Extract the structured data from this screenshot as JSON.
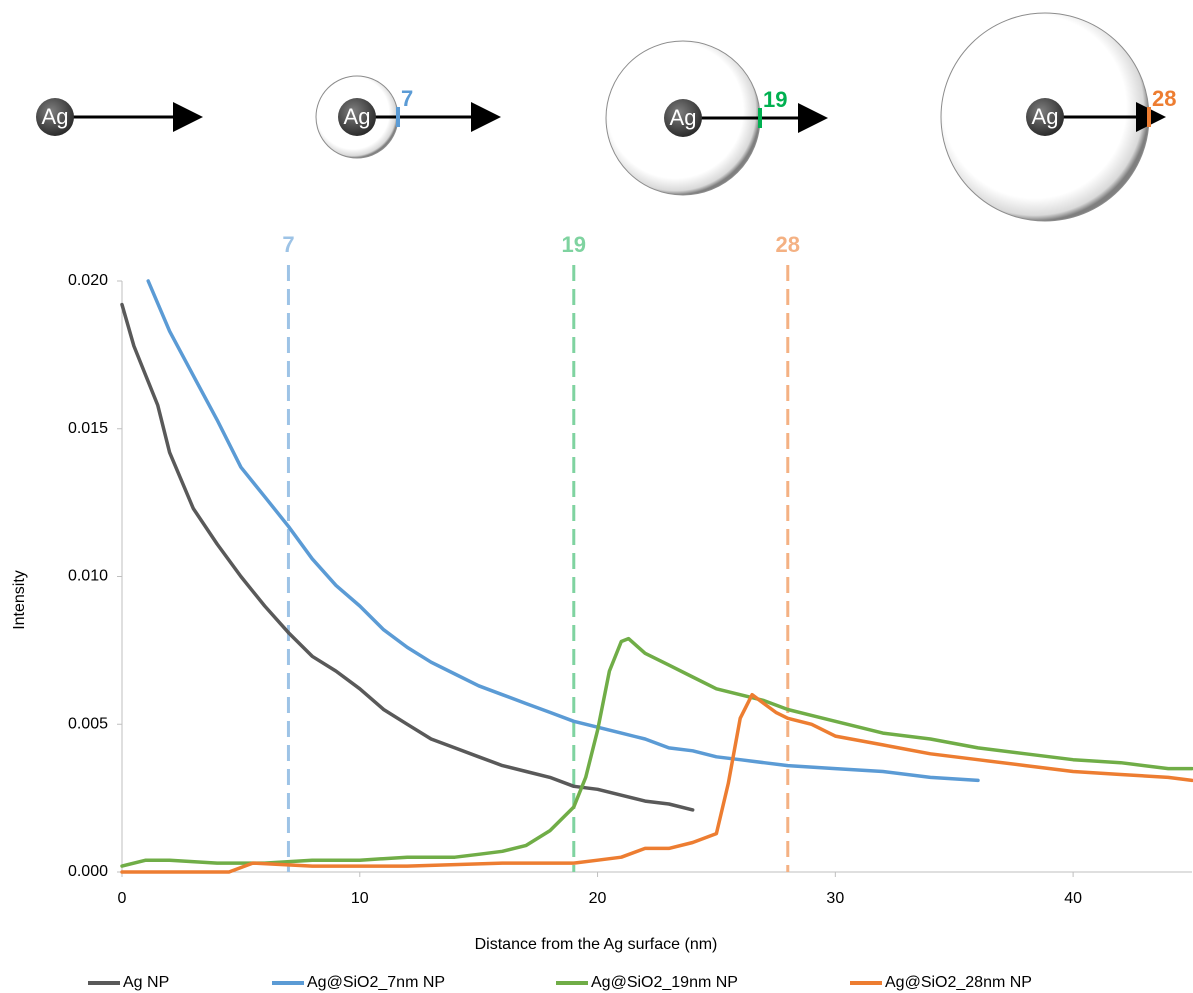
{
  "diagrams": [
    {
      "core": "Ag"
    },
    {
      "core": "Ag",
      "shell": 7,
      "color": "#5b9bd5"
    },
    {
      "core": "Ag",
      "shell": 19,
      "color": "#00b050"
    },
    {
      "core": "Ag",
      "shell": 28,
      "color": "#ed7d31"
    }
  ],
  "chart_data": {
    "type": "line",
    "x_label": "Distance from the Ag surface (nm)",
    "y_label": "Intensity",
    "xlim": [
      0,
      45
    ],
    "xticks": [
      0,
      10,
      20,
      30,
      40
    ],
    "ylim": [
      0,
      0.02
    ],
    "yticks": [
      {
        "value": 0,
        "label": "0.000"
      },
      {
        "value": 0.005,
        "label": "0.005"
      },
      {
        "value": 0.01,
        "label": "0.010"
      },
      {
        "value": 0.015,
        "label": "0.015"
      },
      {
        "value": 0.02,
        "label": "0.020"
      }
    ],
    "reference_lines": [
      {
        "x": 7,
        "color": "#9dc3e6"
      },
      {
        "x": 19,
        "color": "#7fd3a0"
      },
      {
        "x": 28,
        "color": "#f4b183"
      }
    ],
    "legend": "bottom",
    "series": [
      {
        "name": "Ag NP",
        "color": "#595959",
        "x": [
          0,
          0.5,
          1,
          1.5,
          2,
          3,
          4,
          5,
          6,
          7,
          8,
          9,
          10,
          11,
          12,
          13,
          14,
          15,
          16,
          17,
          18,
          19,
          20,
          21,
          22,
          23,
          24
        ],
        "values": [
          0.0192,
          0.0178,
          0.0168,
          0.0158,
          0.0142,
          0.0123,
          0.0111,
          0.01,
          0.009,
          0.0081,
          0.0073,
          0.0068,
          0.0062,
          0.0055,
          0.005,
          0.0045,
          0.0042,
          0.0039,
          0.0036,
          0.0034,
          0.0032,
          0.0029,
          0.0028,
          0.0026,
          0.0024,
          0.0023,
          0.0021
        ]
      },
      {
        "name": "Ag@SiO2_7nm NP",
        "color": "#5b9bd5",
        "x": [
          1.1,
          2,
          3,
          4,
          5,
          6,
          7,
          8,
          9,
          10,
          11,
          12,
          13,
          14,
          15,
          16,
          17,
          18,
          19,
          20,
          21,
          22,
          23,
          24,
          25,
          26,
          27,
          28,
          30,
          32,
          34,
          36
        ],
        "values": [
          0.02,
          0.0183,
          0.0168,
          0.0153,
          0.0137,
          0.0127,
          0.0117,
          0.0106,
          0.0097,
          0.009,
          0.0082,
          0.0076,
          0.0071,
          0.0067,
          0.0063,
          0.006,
          0.0057,
          0.0054,
          0.0051,
          0.0049,
          0.0047,
          0.0045,
          0.0042,
          0.0041,
          0.0039,
          0.0038,
          0.0037,
          0.0036,
          0.0035,
          0.0034,
          0.0032,
          0.0031
        ]
      },
      {
        "name": "Ag@SiO2_19nm NP",
        "color": "#70ad47",
        "x": [
          0,
          1,
          2,
          4,
          6,
          8,
          10,
          12,
          14,
          15,
          16,
          17,
          18,
          19,
          19.5,
          20,
          20.5,
          21,
          21.3,
          22,
          23,
          24,
          25,
          26,
          27,
          28,
          29,
          30,
          31,
          32,
          34,
          36,
          38,
          40,
          42,
          44,
          45
        ],
        "values": [
          0.0002,
          0.0004,
          0.0004,
          0.0003,
          0.0003,
          0.0004,
          0.0004,
          0.0005,
          0.0005,
          0.0006,
          0.0007,
          0.0009,
          0.0014,
          0.0022,
          0.0032,
          0.0048,
          0.0068,
          0.0078,
          0.0079,
          0.0074,
          0.007,
          0.0066,
          0.0062,
          0.006,
          0.0058,
          0.0055,
          0.0053,
          0.0051,
          0.0049,
          0.0047,
          0.0045,
          0.0042,
          0.004,
          0.0038,
          0.0037,
          0.0035,
          0.0035
        ]
      },
      {
        "name": "Ag@SiO2_28nm NP",
        "color": "#ed7d31",
        "x": [
          0,
          4.5,
          5.5,
          8,
          12,
          16,
          19,
          20,
          21,
          22,
          23,
          24,
          25,
          25.5,
          26,
          26.5,
          27,
          27.5,
          28,
          29,
          30,
          32,
          34,
          36,
          38,
          40,
          42,
          44,
          45
        ],
        "values": [
          0,
          0,
          0.0003,
          0.0002,
          0.0002,
          0.0003,
          0.0003,
          0.0004,
          0.0005,
          0.0008,
          0.0008,
          0.001,
          0.0013,
          0.003,
          0.0052,
          0.006,
          0.0057,
          0.0054,
          0.0052,
          0.005,
          0.0046,
          0.0043,
          0.004,
          0.0038,
          0.0036,
          0.0034,
          0.0033,
          0.0032,
          0.0031
        ]
      }
    ]
  }
}
